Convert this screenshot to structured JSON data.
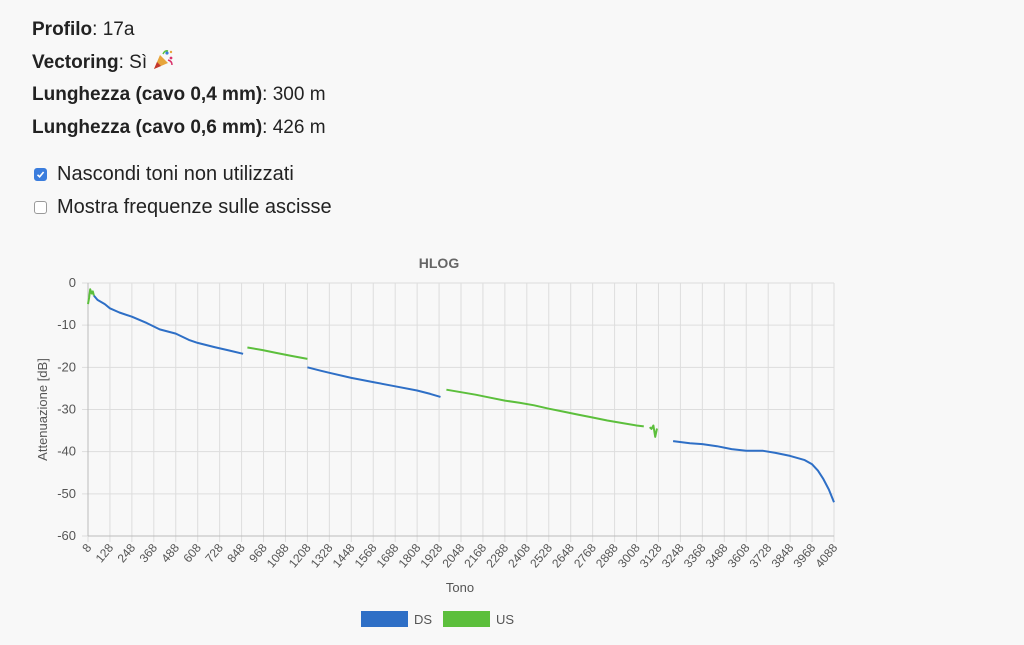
{
  "info": {
    "profilo_label": "Profilo",
    "profilo_value": "17a",
    "vectoring_label": "Vectoring",
    "vectoring_value": "Sì",
    "vectoring_emoji": "party-popper-icon",
    "len04_label": "Lunghezza (cavo 0,4 mm)",
    "len04_value": "300 m",
    "len06_label": "Lunghezza (cavo 0,6 mm)",
    "len06_value": "426 m"
  },
  "options": [
    {
      "label": "Nascondi toni non utilizzati",
      "checked": true
    },
    {
      "label": "Mostra frequenze sulle ascisse",
      "checked": false
    }
  ],
  "colors": {
    "ds": "#2e6fc6",
    "us": "#5cbf3c",
    "grid": "#dddddd",
    "checkbox": "#3b7ddd"
  },
  "chart_data": {
    "type": "line",
    "title": "HLOG",
    "xlabel": "Tono",
    "ylabel": "Attenuazione [dB]",
    "ylim": [
      -60,
      0
    ],
    "yticks": [
      0,
      -10,
      -20,
      -30,
      -40,
      -50,
      -60
    ],
    "xlim": [
      8,
      4088
    ],
    "xticks": [
      8,
      128,
      248,
      368,
      488,
      608,
      728,
      848,
      968,
      1088,
      1208,
      1328,
      1448,
      1568,
      1688,
      1808,
      1928,
      2048,
      2168,
      2288,
      2408,
      2528,
      2648,
      2768,
      2888,
      3008,
      3128,
      3248,
      3368,
      3488,
      3608,
      3728,
      3848,
      3968,
      4088
    ],
    "legend_position": "bottom",
    "grid": true,
    "series": [
      {
        "name": "DS",
        "color": "#2e6fc6",
        "segments": [
          [
            [
              40,
              -3.0
            ],
            [
              60,
              -4.0
            ],
            [
              100,
              -5.0
            ],
            [
              128,
              -6.0
            ],
            [
              180,
              -7.0
            ],
            [
              248,
              -8.0
            ],
            [
              330,
              -9.5
            ],
            [
              400,
              -11.0
            ],
            [
              488,
              -12.0
            ],
            [
              560,
              -13.5
            ],
            [
              608,
              -14.2
            ],
            [
              700,
              -15.2
            ],
            [
              780,
              -16.0
            ],
            [
              856,
              -16.8
            ]
          ],
          [
            [
              1208,
              -20.0
            ],
            [
              1280,
              -20.8
            ],
            [
              1328,
              -21.3
            ],
            [
              1448,
              -22.5
            ],
            [
              1568,
              -23.5
            ],
            [
              1688,
              -24.5
            ],
            [
              1808,
              -25.5
            ],
            [
              1880,
              -26.3
            ],
            [
              1936,
              -27.0
            ]
          ],
          [
            [
              3208,
              -37.5
            ],
            [
              3300,
              -38.0
            ],
            [
              3368,
              -38.2
            ],
            [
              3448,
              -38.7
            ],
            [
              3528,
              -39.4
            ],
            [
              3608,
              -39.8
            ],
            [
              3700,
              -39.8
            ],
            [
              3768,
              -40.3
            ],
            [
              3848,
              -41.0
            ],
            [
              3928,
              -42.0
            ],
            [
              3968,
              -43.0
            ],
            [
              4000,
              -44.5
            ],
            [
              4030,
              -46.5
            ],
            [
              4060,
              -49.0
            ],
            [
              4088,
              -52.0
            ]
          ]
        ]
      },
      {
        "name": "US",
        "color": "#5cbf3c",
        "segments": [
          [
            [
              8,
              -5.0
            ],
            [
              14,
              -3.5
            ],
            [
              20,
              -1.5
            ],
            [
              28,
              -2.5
            ],
            [
              34,
              -2.0
            ],
            [
              40,
              -3.0
            ]
          ],
          [
            [
              880,
              -15.3
            ],
            [
              960,
              -15.9
            ],
            [
              1040,
              -16.6
            ],
            [
              1120,
              -17.3
            ],
            [
              1208,
              -18.0
            ]
          ],
          [
            [
              1968,
              -25.3
            ],
            [
              2048,
              -25.9
            ],
            [
              2128,
              -26.5
            ],
            [
              2208,
              -27.2
            ],
            [
              2288,
              -27.9
            ],
            [
              2368,
              -28.4
            ],
            [
              2448,
              -29.0
            ],
            [
              2528,
              -29.8
            ],
            [
              2608,
              -30.5
            ],
            [
              2688,
              -31.2
            ],
            [
              2768,
              -31.9
            ],
            [
              2848,
              -32.6
            ],
            [
              2928,
              -33.2
            ],
            [
              3008,
              -33.8
            ],
            [
              3048,
              -34.0
            ]
          ],
          [
            [
              3080,
              -34.2
            ],
            [
              3090,
              -34.6
            ],
            [
              3100,
              -33.8
            ],
            [
              3110,
              -36.5
            ],
            [
              3120,
              -34.5
            ]
          ]
        ]
      }
    ]
  }
}
